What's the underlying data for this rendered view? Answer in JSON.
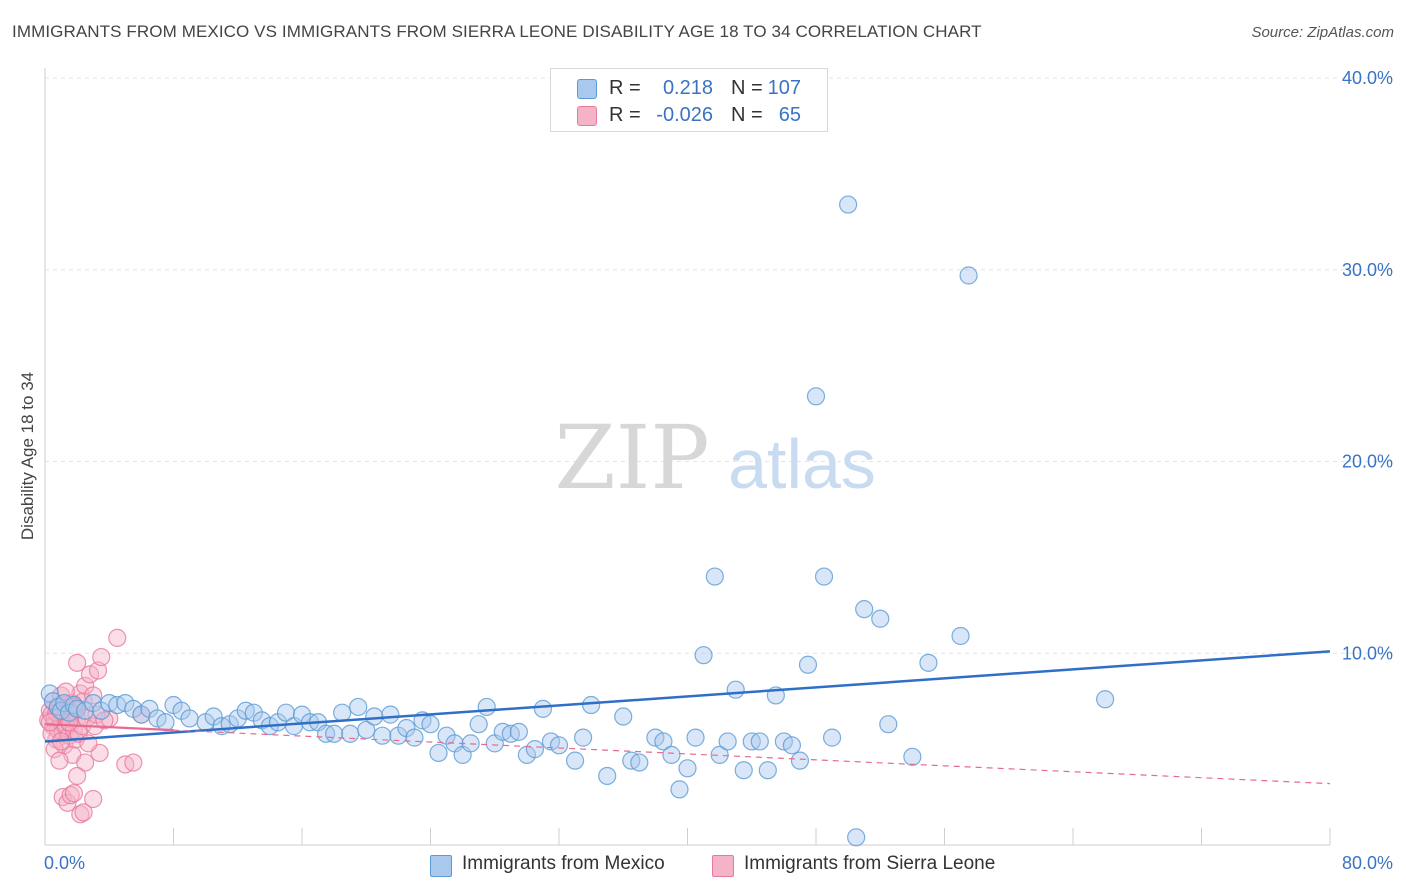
{
  "title": "IMMIGRANTS FROM MEXICO VS IMMIGRANTS FROM SIERRA LEONE DISABILITY AGE 18 TO 34 CORRELATION CHART",
  "source": "Source: ZipAtlas.com",
  "watermark": {
    "zip": "ZIP",
    "atlas": "atlas"
  },
  "colors": {
    "blue": "#5b9bd5",
    "blue_fill": "#a9c8ee",
    "blue_line": "#2f6fc7",
    "pink": "#e8799e",
    "pink_fill": "#f5b3c8",
    "pink_line": "#e76a93",
    "accent_text": "#3a73c4"
  },
  "legend_top": [
    {
      "r_label": "R =",
      "r_value": "0.218",
      "n_label": "N =",
      "n_value": "107",
      "color": "#a9c8ee"
    },
    {
      "r_label": "R =",
      "r_value": "-0.026",
      "n_label": "N =",
      "n_value": "65",
      "color": "#f5b3c8"
    }
  ],
  "legend_bottom": [
    {
      "label": "Immigrants from Mexico",
      "color": "#a9c8ee"
    },
    {
      "label": "Immigrants from Sierra Leone",
      "color": "#f5b3c8"
    }
  ],
  "chart_data": {
    "type": "scatter",
    "title": "IMMIGRANTS FROM MEXICO VS IMMIGRANTS FROM SIERRA LEONE DISABILITY AGE 18 TO 34 CORRELATION CHART",
    "xlabel": "",
    "ylabel": "Disability Age 18 to 34",
    "xlim": [
      0,
      80
    ],
    "ylim": [
      0,
      40
    ],
    "x_tick_labels": [
      "0.0%",
      "80.0%"
    ],
    "y_ticks": [
      10,
      20,
      30,
      40
    ],
    "y_tick_labels": [
      "10.0%",
      "20.0%",
      "30.0%",
      "40.0%"
    ],
    "series": [
      {
        "name": "Immigrants from Mexico",
        "points": [
          [
            0.3,
            7.9
          ],
          [
            0.5,
            7.5
          ],
          [
            0.8,
            7.2
          ],
          [
            1.0,
            7.0
          ],
          [
            1.2,
            7.4
          ],
          [
            1.5,
            6.9
          ],
          [
            1.8,
            7.3
          ],
          [
            2.0,
            7.1
          ],
          [
            2.5,
            7.0
          ],
          [
            3.0,
            7.4
          ],
          [
            3.5,
            7.0
          ],
          [
            4.0,
            7.4
          ],
          [
            4.5,
            7.3
          ],
          [
            5.0,
            7.4
          ],
          [
            5.5,
            7.1
          ],
          [
            6.0,
            6.8
          ],
          [
            6.5,
            7.1
          ],
          [
            7.0,
            6.6
          ],
          [
            7.5,
            6.4
          ],
          [
            8.0,
            7.3
          ],
          [
            8.5,
            7.0
          ],
          [
            9.0,
            6.6
          ],
          [
            10.0,
            6.4
          ],
          [
            10.5,
            6.7
          ],
          [
            11.0,
            6.2
          ],
          [
            11.5,
            6.3
          ],
          [
            12.0,
            6.6
          ],
          [
            12.5,
            7.0
          ],
          [
            13.0,
            6.9
          ],
          [
            13.5,
            6.5
          ],
          [
            14.0,
            6.2
          ],
          [
            14.5,
            6.4
          ],
          [
            15.0,
            6.9
          ],
          [
            15.5,
            6.2
          ],
          [
            16.0,
            6.8
          ],
          [
            16.5,
            6.4
          ],
          [
            17.0,
            6.4
          ],
          [
            17.5,
            5.8
          ],
          [
            18.0,
            5.8
          ],
          [
            18.5,
            6.9
          ],
          [
            19.0,
            5.8
          ],
          [
            19.5,
            7.2
          ],
          [
            20.0,
            6.0
          ],
          [
            20.5,
            6.7
          ],
          [
            21.0,
            5.7
          ],
          [
            21.5,
            6.8
          ],
          [
            22.0,
            5.7
          ],
          [
            22.5,
            6.1
          ],
          [
            23.0,
            5.6
          ],
          [
            23.5,
            6.5
          ],
          [
            24.0,
            6.3
          ],
          [
            24.5,
            4.8
          ],
          [
            25.0,
            5.7
          ],
          [
            25.5,
            5.3
          ],
          [
            26.0,
            4.7
          ],
          [
            26.5,
            5.3
          ],
          [
            27.0,
            6.3
          ],
          [
            27.5,
            7.2
          ],
          [
            28.0,
            5.3
          ],
          [
            28.5,
            5.9
          ],
          [
            29.0,
            5.8
          ],
          [
            29.5,
            5.9
          ],
          [
            30.0,
            4.7
          ],
          [
            30.5,
            5.0
          ],
          [
            31.0,
            7.1
          ],
          [
            31.5,
            5.4
          ],
          [
            32.0,
            5.2
          ],
          [
            33.0,
            4.4
          ],
          [
            33.5,
            5.6
          ],
          [
            34.0,
            7.3
          ],
          [
            35.0,
            3.6
          ],
          [
            36.0,
            6.7
          ],
          [
            36.5,
            4.4
          ],
          [
            37.0,
            4.3
          ],
          [
            38.0,
            5.6
          ],
          [
            38.5,
            5.4
          ],
          [
            39.0,
            4.7
          ],
          [
            39.5,
            2.9
          ],
          [
            40.0,
            4.0
          ],
          [
            40.5,
            5.6
          ],
          [
            41.0,
            9.9
          ],
          [
            42.0,
            4.7
          ],
          [
            42.5,
            5.4
          ],
          [
            41.7,
            14.0
          ],
          [
            43.0,
            8.1
          ],
          [
            43.5,
            3.9
          ],
          [
            44.0,
            5.4
          ],
          [
            44.5,
            5.4
          ],
          [
            45.0,
            3.9
          ],
          [
            45.5,
            7.8
          ],
          [
            46.0,
            5.4
          ],
          [
            46.5,
            5.2
          ],
          [
            47.0,
            4.4
          ],
          [
            47.5,
            9.4
          ],
          [
            48.0,
            23.4
          ],
          [
            49.0,
            5.6
          ],
          [
            50.0,
            33.4
          ],
          [
            51.0,
            12.3
          ],
          [
            52.0,
            11.8
          ],
          [
            52.5,
            6.3
          ],
          [
            54.0,
            4.6
          ],
          [
            55.0,
            9.5
          ],
          [
            57.0,
            10.9
          ],
          [
            57.5,
            29.7
          ],
          [
            66.0,
            7.6
          ],
          [
            50.5,
            0.4
          ],
          [
            48.5,
            14.0
          ]
        ]
      },
      {
        "name": "Immigrants from Sierra Leone",
        "points": [
          [
            0.2,
            6.5
          ],
          [
            0.3,
            7.0
          ],
          [
            0.4,
            6.8
          ],
          [
            0.5,
            6.2
          ],
          [
            0.5,
            7.5
          ],
          [
            0.6,
            6.6
          ],
          [
            0.7,
            5.5
          ],
          [
            0.8,
            7.1
          ],
          [
            0.8,
            6.0
          ],
          [
            0.9,
            6.9
          ],
          [
            1.0,
            6.4
          ],
          [
            1.0,
            7.8
          ],
          [
            1.1,
            5.9
          ],
          [
            1.2,
            6.7
          ],
          [
            1.2,
            5.2
          ],
          [
            1.3,
            7.3
          ],
          [
            1.3,
            6.1
          ],
          [
            1.4,
            6.8
          ],
          [
            1.5,
            5.7
          ],
          [
            1.5,
            7.0
          ],
          [
            1.6,
            6.3
          ],
          [
            1.7,
            4.7
          ],
          [
            1.7,
            7.4
          ],
          [
            1.8,
            6.0
          ],
          [
            1.9,
            5.5
          ],
          [
            2.0,
            6.6
          ],
          [
            2.0,
            9.5
          ],
          [
            2.1,
            5.8
          ],
          [
            2.2,
            7.9
          ],
          [
            2.3,
            6.2
          ],
          [
            2.4,
            7.5
          ],
          [
            2.5,
            8.3
          ],
          [
            2.5,
            4.3
          ],
          [
            2.6,
            6.6
          ],
          [
            2.8,
            8.9
          ],
          [
            3.0,
            7.8
          ],
          [
            3.1,
            6.2
          ],
          [
            3.3,
            9.1
          ],
          [
            3.5,
            9.8
          ],
          [
            0.6,
            5.0
          ],
          [
            0.9,
            4.4
          ],
          [
            1.1,
            2.5
          ],
          [
            1.4,
            2.2
          ],
          [
            1.6,
            2.6
          ],
          [
            1.8,
            2.7
          ],
          [
            2.0,
            3.6
          ],
          [
            2.2,
            1.6
          ],
          [
            2.4,
            1.7
          ],
          [
            3.0,
            2.4
          ],
          [
            3.4,
            4.8
          ],
          [
            4.0,
            6.6
          ],
          [
            4.5,
            10.8
          ],
          [
            5.0,
            4.2
          ],
          [
            5.5,
            4.3
          ],
          [
            6.0,
            6.8
          ],
          [
            0.4,
            5.8
          ],
          [
            0.7,
            6.9
          ],
          [
            1.0,
            5.4
          ],
          [
            1.3,
            8.0
          ],
          [
            1.9,
            7.2
          ],
          [
            2.7,
            5.3
          ],
          [
            3.2,
            6.8
          ],
          [
            3.7,
            6.5
          ],
          [
            0.3,
            6.4
          ],
          [
            1.5,
            6.4
          ]
        ]
      }
    ],
    "trend_lines": [
      {
        "series": "Immigrants from Mexico",
        "x": [
          0,
          80
        ],
        "y": [
          5.4,
          10.1
        ],
        "style": "solid"
      },
      {
        "series": "Immigrants from Sierra Leone",
        "x": [
          0,
          80
        ],
        "y": [
          6.3,
          3.2
        ],
        "style": "solid-then-dashed"
      }
    ],
    "grid": true,
    "legend_position": "top-center"
  }
}
